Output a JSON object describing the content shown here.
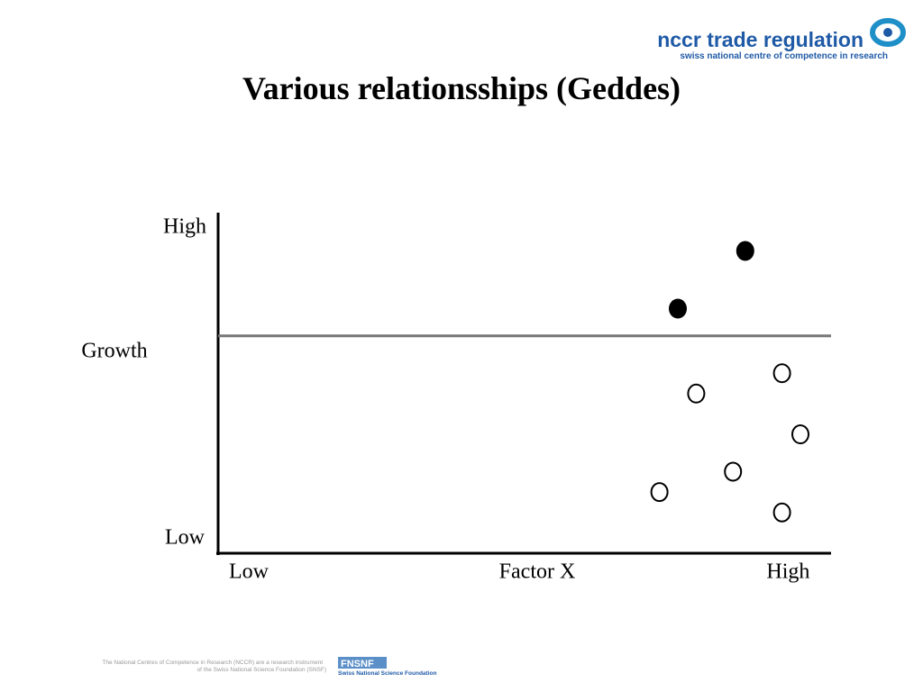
{
  "header": {
    "logo_title": "nccr trade regulation",
    "logo_subtitle": "swiss national centre of competence in research"
  },
  "chart_data": {
    "type": "scatter",
    "title": "Various relationsships (Geddes)",
    "xlabel": "Factor X",
    "ylabel": "Growth",
    "xlim": [
      0,
      100
    ],
    "ylim": [
      0,
      100
    ],
    "xticks": [
      {
        "value": 5,
        "label": "Low"
      },
      {
        "value": 93,
        "label": "High"
      }
    ],
    "yticks": [
      {
        "value": 100,
        "label": "High"
      },
      {
        "value": 0,
        "label": "Low"
      }
    ],
    "threshold": 64,
    "series": [
      {
        "color": "#000000",
        "filled": true,
        "x": [
          86,
          75
        ],
        "values": [
          89,
          72
        ]
      },
      {
        "color": "#000000",
        "filled": false,
        "x": [
          92,
          78,
          95,
          84,
          72,
          92
        ],
        "values": [
          53,
          47,
          35,
          24,
          18,
          12
        ]
      }
    ]
  },
  "footer": {
    "note_line1": "The National Centres of Competence in Research (NCCR) are a research instrument",
    "note_line2": "of the Swiss National Science Foundation (SNSF)",
    "fund_logo": "FNSNF",
    "fund_name": "Swiss National Science Foundation"
  }
}
